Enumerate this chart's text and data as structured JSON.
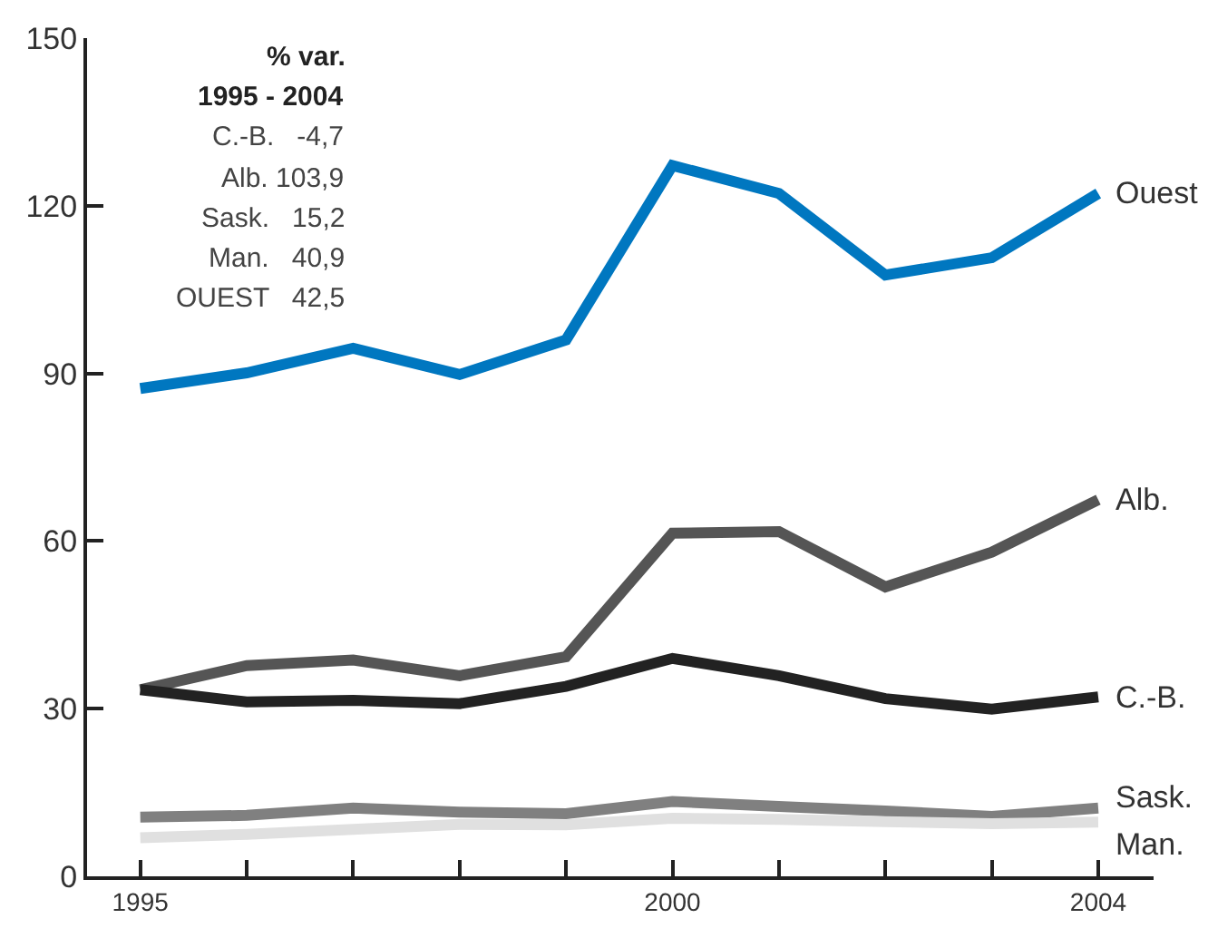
{
  "chart_data": {
    "type": "line",
    "x": [
      1995,
      1996,
      1997,
      1998,
      1999,
      2000,
      2001,
      2002,
      2003,
      2004
    ],
    "xlim": [
      1994.5,
      2004.52
    ],
    "xticks": [
      1995,
      {
        "value": 1996,
        "label": null
      },
      {
        "value": 1997,
        "label": null
      },
      {
        "value": 1998,
        "label": null
      },
      {
        "value": 1999,
        "label": null
      },
      2000,
      {
        "value": 2001,
        "label": null
      },
      {
        "value": 2002,
        "label": null
      },
      {
        "value": 2003,
        "label": null
      },
      2004
    ],
    "ylim": [
      0,
      150
    ],
    "yticks": [
      0,
      30,
      60,
      90,
      120,
      150
    ],
    "legend": false,
    "marker": "none",
    "line_style": "solid",
    "series": [
      {
        "name": "Ouest",
        "color": "#0077c0",
        "values": [
          87.3,
          90.1,
          94.5,
          89.8,
          96.0,
          127.2,
          122.2,
          107.6,
          110.7,
          122.2
        ]
      },
      {
        "name": "Alb.",
        "color": "#555555",
        "values": [
          33.4,
          37.7,
          38.7,
          35.9,
          39.3,
          61.4,
          61.7,
          51.8,
          58.0,
          67.4
        ]
      },
      {
        "name": "C.-B.",
        "color": "#222222",
        "values": [
          33.4,
          31.2,
          31.5,
          30.9,
          34.0,
          39.0,
          35.9,
          31.8,
          29.9,
          32.1
        ]
      },
      {
        "name": "Sask.",
        "color": "#808080",
        "values": [
          10.6,
          10.9,
          12.2,
          11.5,
          11.2,
          13.4,
          12.5,
          11.7,
          10.7,
          12.2
        ]
      },
      {
        "name": "Man.",
        "color": "#e0e0e0",
        "values": [
          6.9,
          7.5,
          8.4,
          9.3,
          9.2,
          10.4,
          10.2,
          9.8,
          9.4,
          9.7
        ]
      }
    ],
    "annotations": [
      "% var.",
      "1995 - 2004",
      "C.-B.   -4,7",
      "Alb. 103,9",
      "Sask.   15,2",
      "Man.   40,9",
      "OUEST   42,5"
    ]
  }
}
